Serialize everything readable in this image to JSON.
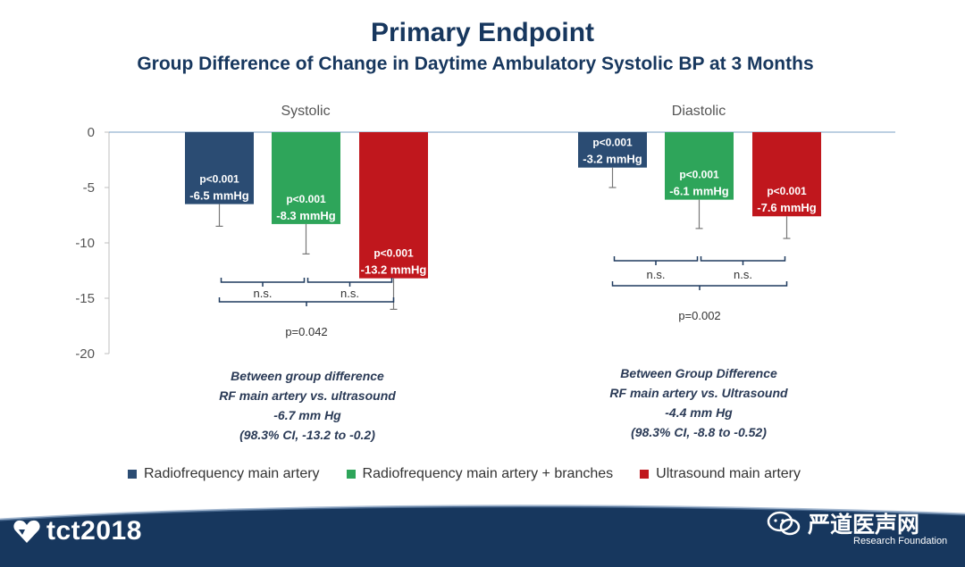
{
  "title": "Primary Endpoint",
  "subtitle": "Group Difference of Change in Daytime Ambulatory Systolic BP at 3 Months",
  "chart_data": {
    "type": "bar",
    "ylim": [
      -20,
      0
    ],
    "yticks": [
      0,
      -5,
      -10,
      -15,
      -20
    ],
    "ytick_labels": [
      "0",
      "-5",
      "-10",
      "-15",
      "-20"
    ],
    "grid": false,
    "legend_position": "bottom",
    "categories": [
      "Systolic",
      "Diastolic"
    ],
    "series": [
      {
        "name": "Radiofrequency main artery",
        "color": "#2b4c73",
        "values": [
          -6.5,
          -3.2
        ],
        "error_lower": [
          -8.5,
          -5.0
        ],
        "labels_p": [
          "p<0.001",
          "p<0.001"
        ],
        "labels_value": [
          "-6.5 mmHg",
          "-3.2 mmHg"
        ]
      },
      {
        "name": "Radiofrequency main artery + branches",
        "color": "#2ea55a",
        "values": [
          -8.3,
          -6.1
        ],
        "error_lower": [
          -11.0,
          -8.7
        ],
        "labels_p": [
          "p<0.001",
          "p<0.001"
        ],
        "labels_value": [
          "-8.3 mmHg",
          "-6.1 mmHg"
        ]
      },
      {
        "name": "Ultrasound main artery",
        "color": "#c0171d",
        "values": [
          -13.2,
          -7.6
        ],
        "error_lower": [
          -16.0,
          -9.6
        ],
        "labels_p": [
          "p<0.001",
          "p<0.001"
        ],
        "labels_value": [
          "-13.2 mmHg",
          "-7.6 mmHg"
        ]
      }
    ],
    "comparisons": [
      {
        "group": 0,
        "pairs": [
          [
            0,
            1
          ],
          [
            1,
            2
          ]
        ],
        "pair_labels": [
          "n.s.",
          "n.s."
        ],
        "overall": [
          0,
          2
        ],
        "overall_label": "p=0.042"
      },
      {
        "group": 1,
        "pairs": [
          [
            0,
            1
          ],
          [
            1,
            2
          ]
        ],
        "pair_labels": [
          "n.s.",
          "n.s."
        ],
        "overall": [
          0,
          2
        ],
        "overall_label": "p=0.002"
      }
    ]
  },
  "between_group": {
    "systolic": {
      "heading": "Between group difference",
      "comparison": "RF main artery vs. ultrasound",
      "value": "-6.7 mm Hg",
      "ci": "(98.3% CI, -13.2 to -0.2)"
    },
    "diastolic": {
      "heading": "Between Group Difference",
      "comparison": "RF main artery vs. Ultrasound",
      "value": "-4.4 mm Hg",
      "ci": "(98.3% CI, -8.8 to -0.52)"
    }
  },
  "legend": [
    {
      "label": "Radiofrequency main artery",
      "color": "#2b4c73"
    },
    {
      "label": "Radiofrequency main artery + branches",
      "color": "#2ea55a"
    },
    {
      "label": "Ultrasound main artery",
      "color": "#c0171d"
    }
  ],
  "footer": {
    "brand": "tct2018",
    "org_line": "Research Foundation",
    "watermark": "严道医声网",
    "background": "#17375e"
  }
}
